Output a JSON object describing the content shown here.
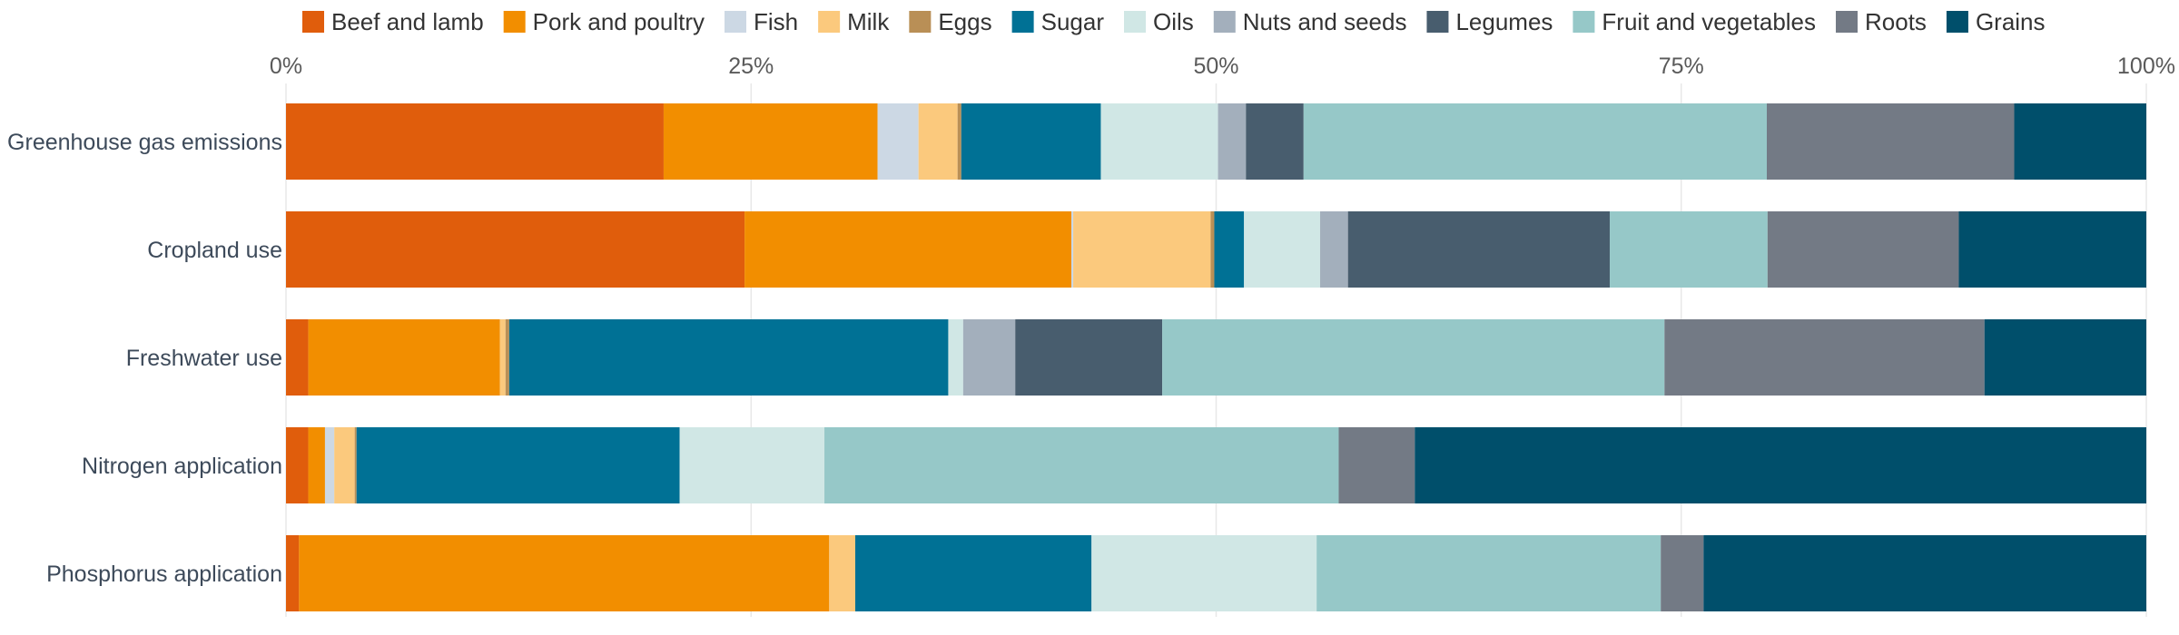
{
  "chart_data": {
    "type": "bar",
    "orientation": "horizontal",
    "stacked": true,
    "xlim": [
      0,
      100
    ],
    "x_ticks": [
      "0%",
      "25%",
      "50%",
      "75%",
      "100%"
    ],
    "x_axis_position": "top",
    "grid": true,
    "legend_position": "top",
    "categories": [
      "Greenhouse gas emissions",
      "Cropland use",
      "Freshwater use",
      "Nitrogen application",
      "Phosphorus application"
    ],
    "series": [
      {
        "name": "Beef and lamb",
        "color": "#e05d0c",
        "values": [
          20.3,
          24.7,
          1.2,
          1.2,
          0.7
        ]
      },
      {
        "name": "Pork and poultry",
        "color": "#f28e00",
        "values": [
          11.5,
          17.6,
          10.3,
          0.9,
          28.5
        ]
      },
      {
        "name": "Fish",
        "color": "#ccd8e4",
        "values": [
          2.2,
          0.1,
          0.0,
          0.5,
          0.0
        ]
      },
      {
        "name": "Milk",
        "color": "#fbc97d",
        "values": [
          2.1,
          7.4,
          0.3,
          1.1,
          1.4
        ]
      },
      {
        "name": "Eggs",
        "color": "#b98f56",
        "values": [
          0.2,
          0.2,
          0.2,
          0.1,
          0.0
        ]
      },
      {
        "name": "Sugar",
        "color": "#007195",
        "values": [
          7.5,
          1.6,
          23.6,
          17.4,
          12.7
        ]
      },
      {
        "name": "Oils",
        "color": "#d0e7e5",
        "values": [
          6.3,
          4.1,
          0.8,
          7.8,
          12.1
        ]
      },
      {
        "name": "Nuts and seeds",
        "color": "#a3afbc",
        "values": [
          1.5,
          1.5,
          2.8,
          0.0,
          0.0
        ]
      },
      {
        "name": "Legumes",
        "color": "#485d6e",
        "values": [
          3.1,
          14.1,
          7.9,
          0.0,
          0.0
        ]
      },
      {
        "name": "Fruit and vegetables",
        "color": "#96c8c8",
        "values": [
          24.9,
          8.5,
          27.0,
          27.7,
          18.5
        ]
      },
      {
        "name": "Roots",
        "color": "#737a85",
        "values": [
          13.3,
          10.3,
          17.2,
          4.1,
          2.3
        ]
      },
      {
        "name": "Grains",
        "color": "#004f6b",
        "values": [
          7.1,
          10.1,
          8.7,
          39.4,
          23.8
        ]
      }
    ]
  }
}
